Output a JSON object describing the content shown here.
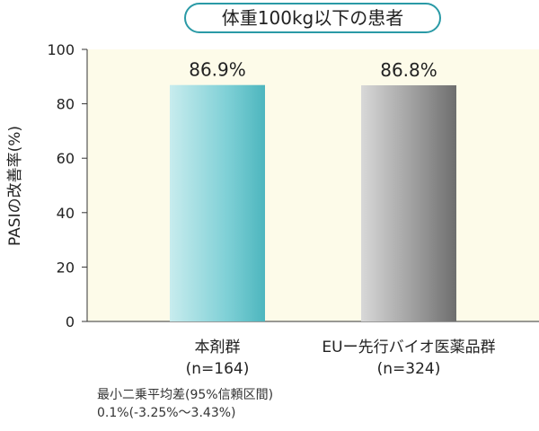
{
  "chart_data": {
    "type": "bar",
    "title": "体重100kg以下の患者",
    "ylabel": "PASIの改善率(%)",
    "xlabel": "",
    "ylim": [
      0,
      100
    ],
    "yticks": [
      0,
      20,
      40,
      60,
      80,
      100
    ],
    "grid": false,
    "categories": [
      {
        "name": "本剤群",
        "n": "(n=164)"
      },
      {
        "name": "EUー先行バイオ医薬品群",
        "n": "(n=324)"
      }
    ],
    "values": [
      86.9,
      86.8
    ],
    "value_labels": [
      "86.9%",
      "86.8%"
    ],
    "colors": {
      "plot_bg": "#fdfbe9",
      "bar1": "#5ebfc6",
      "bar2": "#8a8a8a",
      "title_border": "#2a9aa6"
    }
  },
  "footnote": {
    "line1": "最小二乗平均差(95%信頼区間)",
    "line2": "0.1%(-3.25%〜3.43%)"
  }
}
